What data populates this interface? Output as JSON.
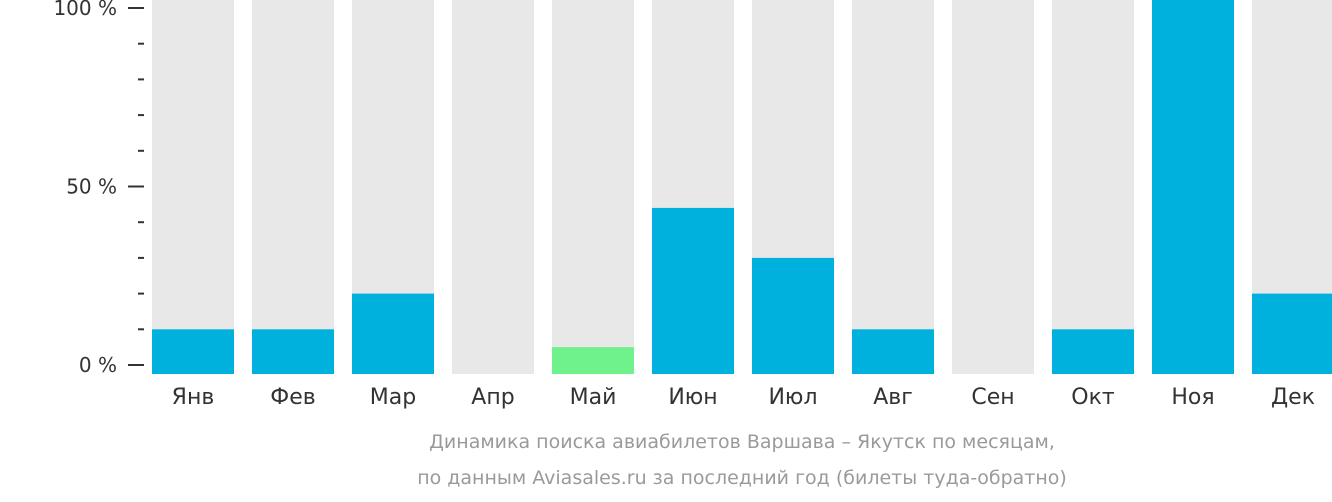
{
  "chart_data": {
    "type": "bar",
    "categories": [
      "Янв",
      "Фев",
      "Мар",
      "Апр",
      "Май",
      "Июн",
      "Июл",
      "Авг",
      "Сен",
      "Окт",
      "Ноя",
      "Дек"
    ],
    "values": [
      10,
      10,
      20,
      0,
      5,
      44,
      30,
      10,
      0,
      10,
      100,
      20
    ],
    "ylim": [
      0,
      100
    ],
    "yticks": [
      {
        "value": 0,
        "label": "0 %"
      },
      {
        "value": 50,
        "label": "50 %"
      },
      {
        "value": 100,
        "label": "100 %"
      }
    ],
    "minor_step": 10,
    "highlight_index": 4,
    "colors": {
      "bar": "#00b1de",
      "highlight": "#6ff28c",
      "background_bar": "#e8e8e8",
      "axis": "#333333"
    },
    "caption_lines": [
      "Динамика поиска авиабилетов Варшава – Якутск по месяцам,",
      "по данным Aviasales.ru за последний год (билеты туда-обратно)"
    ]
  }
}
